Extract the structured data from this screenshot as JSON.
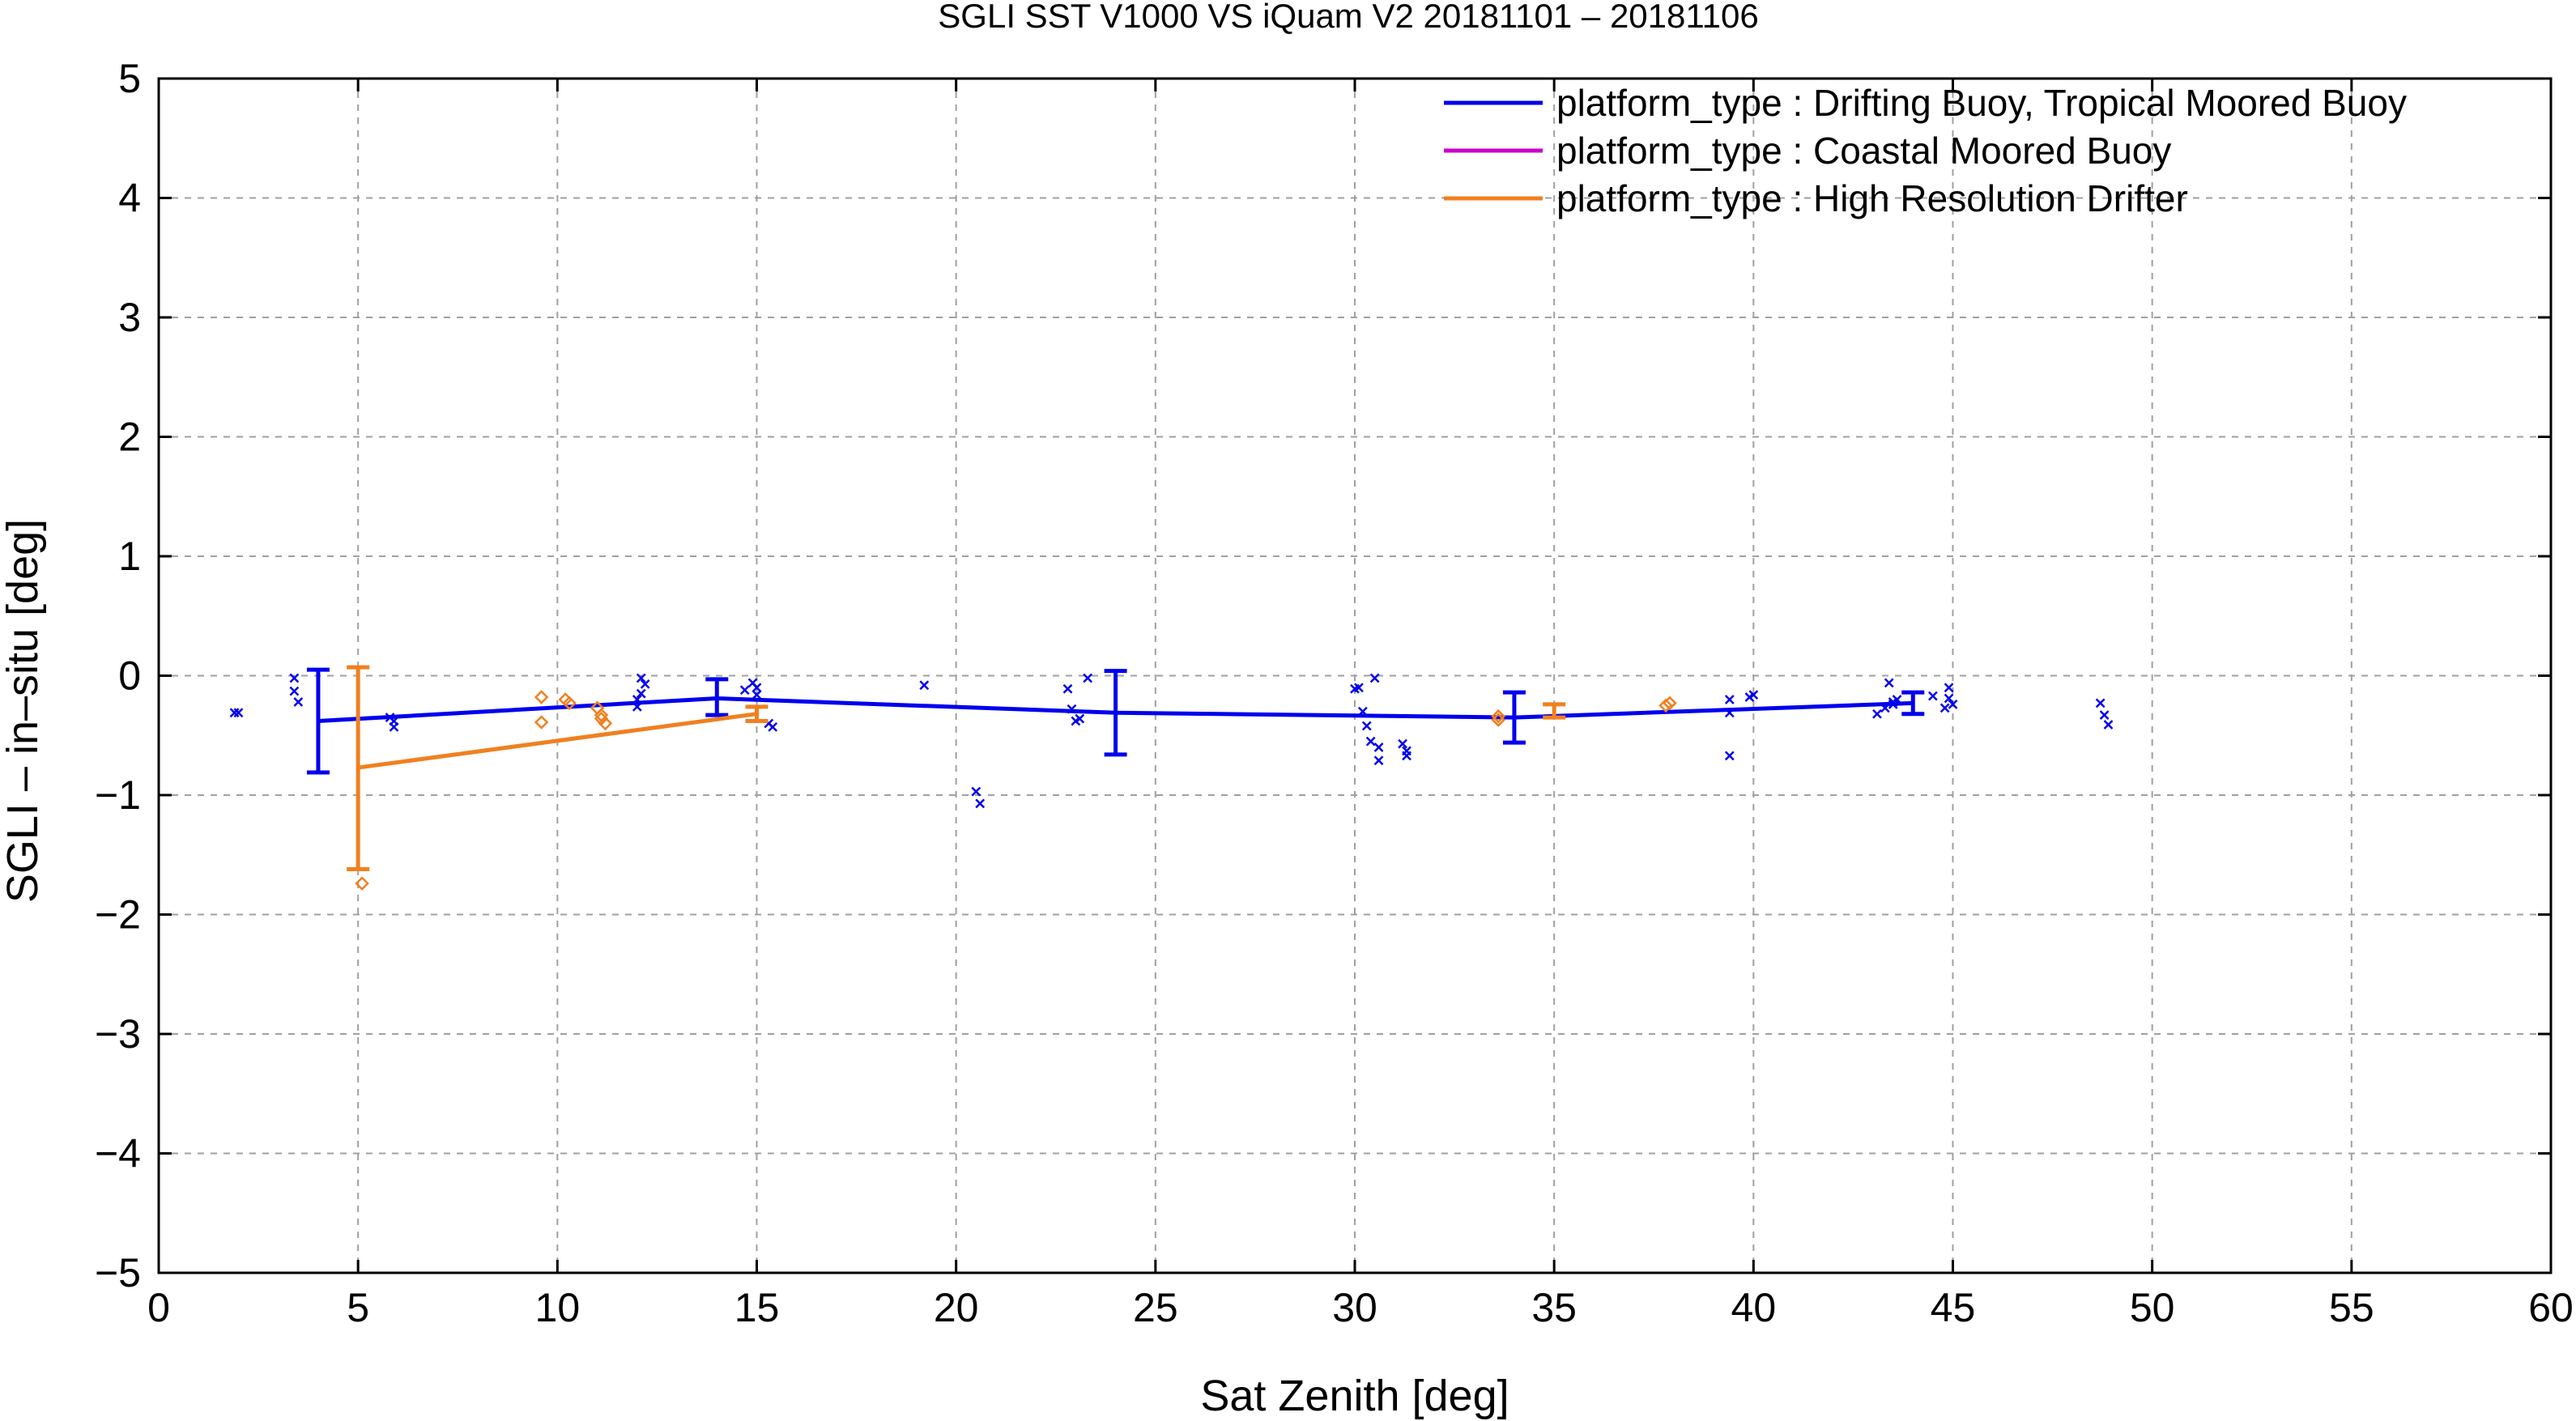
{
  "chart_data": {
    "type": "scatter",
    "title": "SGLI SST V1000 VS iQuam V2 20181101 – 20181106",
    "xlabel": "Sat Zenith [deg]",
    "ylabel": "SGLI – in–situ [deg]",
    "xlim": [
      0,
      60
    ],
    "ylim": [
      -5,
      5
    ],
    "xticks": [
      0,
      5,
      10,
      15,
      20,
      25,
      30,
      35,
      40,
      45,
      50,
      55,
      60
    ],
    "yticks": [
      -5,
      -4,
      -3,
      -2,
      -1,
      0,
      1,
      2,
      3,
      4,
      5
    ],
    "xtick_labels": [
      "0",
      "5",
      "10",
      "15",
      "20",
      "25",
      "30",
      "35",
      "40",
      "45",
      "50",
      "55",
      "60"
    ],
    "ytick_labels": [
      "−5",
      "−4",
      "−3",
      "−2",
      "−1",
      "0",
      "1",
      "2",
      "3",
      "4",
      "5"
    ],
    "grid": true,
    "legend_position": "top-right",
    "series": [
      {
        "name": "platform_type : Drifting Buoy, Tropical Moored Buoy",
        "color": "#0000ee",
        "marker": "x",
        "points": [
          [
            1.9,
            -0.31
          ],
          [
            2.0,
            -0.31
          ],
          [
            3.4,
            -0.02
          ],
          [
            3.4,
            -0.13
          ],
          [
            3.5,
            -0.22
          ],
          [
            5.8,
            -0.35
          ],
          [
            5.9,
            -0.38
          ],
          [
            5.9,
            -0.43
          ],
          [
            12.1,
            -0.02
          ],
          [
            12.2,
            -0.07
          ],
          [
            12.1,
            -0.15
          ],
          [
            12.0,
            -0.2
          ],
          [
            12.0,
            -0.26
          ],
          [
            14.7,
            -0.12
          ],
          [
            14.9,
            -0.06
          ],
          [
            15.0,
            -0.1
          ],
          [
            15.0,
            -0.16
          ],
          [
            15.3,
            -0.4
          ],
          [
            15.4,
            -0.43
          ],
          [
            19.2,
            -0.08
          ],
          [
            20.5,
            -0.97
          ],
          [
            20.6,
            -1.07
          ],
          [
            22.8,
            -0.11
          ],
          [
            22.9,
            -0.28
          ],
          [
            23.0,
            -0.38
          ],
          [
            23.1,
            -0.36
          ],
          [
            23.3,
            -0.02
          ],
          [
            30.0,
            -0.11
          ],
          [
            30.1,
            -0.1
          ],
          [
            30.2,
            -0.3
          ],
          [
            30.3,
            -0.42
          ],
          [
            30.4,
            -0.55
          ],
          [
            30.5,
            -0.02
          ],
          [
            30.6,
            -0.6
          ],
          [
            30.6,
            -0.71
          ],
          [
            31.2,
            -0.57
          ],
          [
            31.3,
            -0.63
          ],
          [
            31.3,
            -0.67
          ],
          [
            39.4,
            -0.2
          ],
          [
            39.4,
            -0.31
          ],
          [
            39.4,
            -0.67
          ],
          [
            39.9,
            -0.18
          ],
          [
            40.0,
            -0.16
          ],
          [
            43.1,
            -0.32
          ],
          [
            43.3,
            -0.27
          ],
          [
            43.4,
            -0.06
          ],
          [
            43.5,
            -0.22
          ],
          [
            43.5,
            -0.24
          ],
          [
            43.6,
            -0.2
          ],
          [
            44.5,
            -0.17
          ],
          [
            44.8,
            -0.27
          ],
          [
            44.9,
            -0.19
          ],
          [
            44.9,
            -0.1
          ],
          [
            45.0,
            -0.24
          ],
          [
            48.7,
            -0.23
          ],
          [
            48.8,
            -0.33
          ],
          [
            48.9,
            -0.41
          ]
        ],
        "line": [
          [
            4,
            -0.38
          ],
          [
            14,
            -0.19
          ],
          [
            24,
            -0.31
          ],
          [
            34,
            -0.35
          ],
          [
            44,
            -0.23
          ]
        ],
        "error_bars": [
          {
            "x": 4,
            "low": -0.81,
            "high": 0.05
          },
          {
            "x": 14,
            "low": -0.33,
            "high": -0.03
          },
          {
            "x": 24,
            "low": -0.66,
            "high": 0.04
          },
          {
            "x": 34,
            "low": -0.56,
            "high": -0.14
          },
          {
            "x": 44,
            "low": -0.32,
            "high": -0.14
          }
        ]
      },
      {
        "name": "platform_type : Coastal Moored Buoy",
        "color": "#cc00cc",
        "marker": "+",
        "points": [],
        "line": [],
        "error_bars": []
      },
      {
        "name": "platform_type : High Resolution Drifter",
        "color": "#f08020",
        "marker": "diamond",
        "points": [
          [
            5.1,
            -1.74
          ],
          [
            9.6,
            -0.18
          ],
          [
            9.6,
            -0.39
          ],
          [
            10.2,
            -0.2
          ],
          [
            10.3,
            -0.23
          ],
          [
            11.0,
            -0.27
          ],
          [
            11.1,
            -0.33
          ],
          [
            11.1,
            -0.36
          ],
          [
            11.2,
            -0.4
          ],
          [
            33.6,
            -0.34
          ],
          [
            33.6,
            -0.37
          ],
          [
            37.8,
            -0.25
          ],
          [
            37.9,
            -0.23
          ]
        ],
        "line": [
          [
            5,
            -0.77
          ],
          [
            15,
            -0.32
          ]
        ],
        "error_bars": [
          {
            "x": 5,
            "low": -1.62,
            "high": 0.07
          },
          {
            "x": 15,
            "low": -0.38,
            "high": -0.26
          },
          {
            "x": 35,
            "low": -0.35,
            "high": -0.24
          }
        ]
      }
    ]
  }
}
